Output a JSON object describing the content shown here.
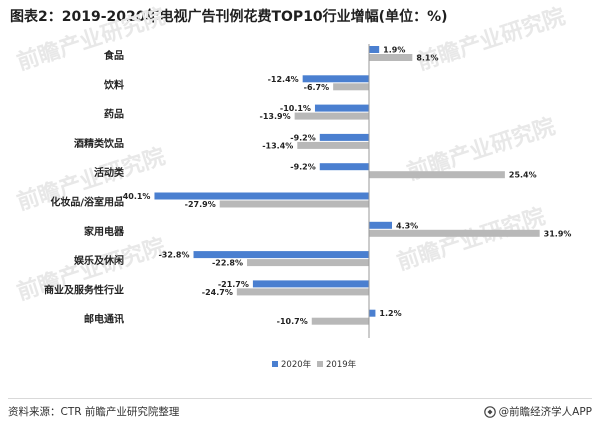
{
  "title": "图表2：2019-2020年电视广告刊例花费TOP10行业增幅(单位：%)",
  "source": "资料来源：CTR 前瞻产业研究院整理",
  "brand": "@前瞻经济学人APP",
  "watermark": "前瞻产业研究院",
  "colors": {
    "series_2020": "#4a7fd0",
    "series_2019": "#b8b8b8"
  },
  "chart_data": {
    "type": "bar",
    "orientation": "horizontal",
    "categories": [
      "食品",
      "饮料",
      "药品",
      "酒精类饮品",
      "活动类",
      "化妆品/浴室用品",
      "家用电器",
      "娱乐及休闲",
      "商业及服务性行业",
      "邮电通讯"
    ],
    "series": [
      {
        "name": "2020年",
        "values": [
          1.9,
          -12.4,
          -10.1,
          -9.2,
          -9.2,
          -40.1,
          4.3,
          -32.8,
          -21.7,
          1.2
        ],
        "labels": [
          "1.9%",
          "-12.4%",
          "-10.1%",
          "-9.2%",
          "-9.2%",
          "-40.1%",
          "4.3%",
          "-32.8%",
          "-21.7%",
          "1.2%"
        ]
      },
      {
        "name": "2019年",
        "values": [
          8.1,
          -6.7,
          -13.9,
          -13.4,
          25.4,
          -27.9,
          31.9,
          -22.8,
          -24.7,
          -10.7
        ],
        "labels": [
          "8.1%",
          "-6.7%",
          "-13.9%",
          "-13.4%",
          "25.4%",
          "-27.9%",
          "31.9%",
          "-22.8%",
          "-24.7%",
          "-10.7%"
        ]
      }
    ],
    "xlim": [
      -45,
      35
    ],
    "legend_position": "bottom",
    "grid": false
  }
}
